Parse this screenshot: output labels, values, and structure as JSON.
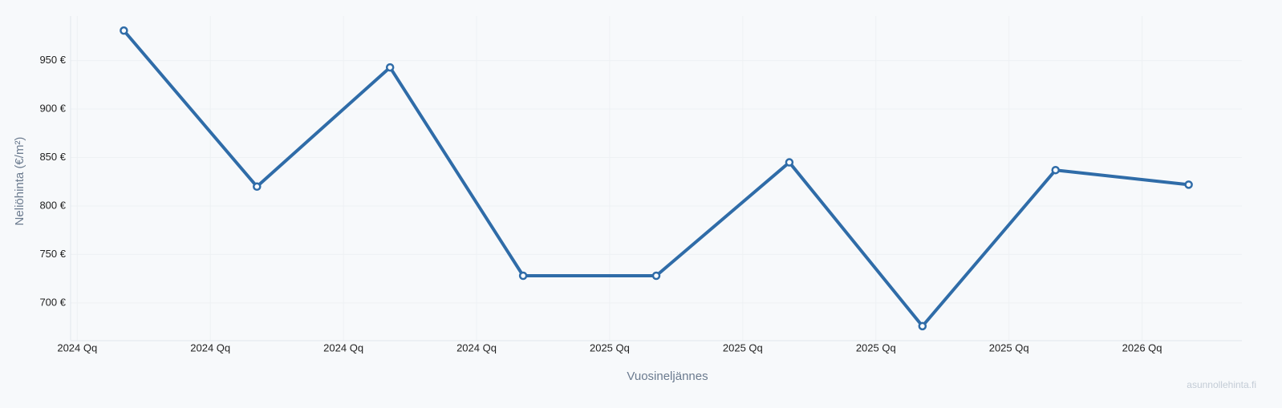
{
  "chart_data": {
    "type": "line",
    "x_label": "Vuosineljännes",
    "y_label": "Neliöhinta (€/m²)",
    "watermark": "asunnollehinta.fi",
    "x": [
      0,
      1,
      2,
      3,
      4,
      5,
      6,
      7,
      8
    ],
    "series": [
      {
        "name": "Neliöhinta",
        "color": "#2f6ca8",
        "values": [
          981,
          820,
          943,
          728,
          728,
          845,
          676,
          837,
          822
        ]
      }
    ],
    "xlim": [
      -0.4,
      8.4
    ],
    "xticks": [
      {
        "value": -0.35,
        "label": "2024 Qq"
      },
      {
        "value": 0.65,
        "label": "2024 Qq"
      },
      {
        "value": 1.65,
        "label": "2024 Qq"
      },
      {
        "value": 2.65,
        "label": "2024 Qq"
      },
      {
        "value": 3.65,
        "label": "2025 Qq"
      },
      {
        "value": 4.65,
        "label": "2025 Qq"
      },
      {
        "value": 5.65,
        "label": "2025 Qq"
      },
      {
        "value": 6.65,
        "label": "2025 Qq"
      },
      {
        "value": 7.65,
        "label": "2026 Qq"
      }
    ],
    "ylim": [
      661,
      996
    ],
    "yticks": [
      {
        "value": 700,
        "label": "700 €"
      },
      {
        "value": 750,
        "label": "750 €"
      },
      {
        "value": 800,
        "label": "800 €"
      },
      {
        "value": 850,
        "label": "850 €"
      },
      {
        "value": 900,
        "label": "900 €"
      },
      {
        "value": 950,
        "label": "950 €"
      }
    ],
    "grid": true
  }
}
